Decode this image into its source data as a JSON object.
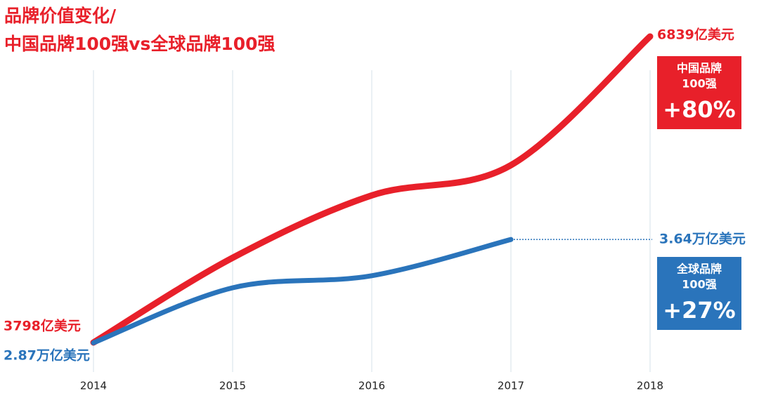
{
  "chart_data": {
    "type": "line",
    "title": [
      "品牌价值变化/",
      "中国品牌100强vs全球品牌100强"
    ],
    "categories": [
      "2014",
      "2015",
      "2016",
      "2017",
      "2018"
    ],
    "grid": true,
    "series": [
      {
        "name": "中国品牌100强",
        "color": "#e8202a",
        "ylim": [
          3435,
          7062
        ],
        "values": [
          3798,
          4640,
          5260,
          5560,
          6839
        ],
        "value_labels": [
          "3798亿美元",
          null,
          null,
          null,
          "6839亿美元"
        ]
      },
      {
        "name": "全球品牌100强",
        "color": "#2a74bb",
        "ylim": [
          2.6,
          5.32
        ],
        "values": [
          2.87,
          3.28,
          3.37,
          3.64,
          null
        ],
        "value_labels": [
          "2.87万亿美元",
          null,
          null,
          "3.64万亿美元",
          null
        ]
      }
    ],
    "annotations": [
      {
        "lines": [
          "中国品牌",
          "100强"
        ],
        "change": "+80%"
      },
      {
        "lines": [
          "全球品牌",
          "100强"
        ],
        "change": "+27%"
      }
    ]
  }
}
